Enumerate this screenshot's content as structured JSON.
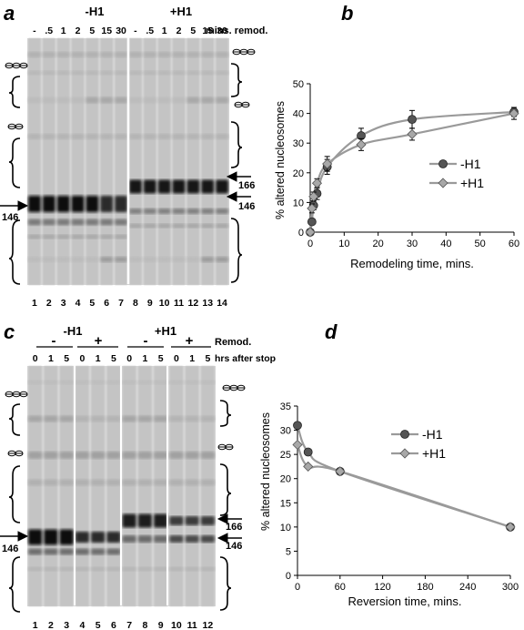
{
  "panels": {
    "a": {
      "letter": "a",
      "groups": [
        "-H1",
        "+H1"
      ],
      "time_header": "mins. remod.",
      "time_labels": [
        "-",
        ".5",
        "1",
        "2",
        "5",
        "15",
        "30",
        "-",
        ".5",
        "1",
        "2",
        "5",
        "15",
        "30"
      ],
      "lane_numbers": [
        "1",
        "2",
        "3",
        "4",
        "5",
        "6",
        "7",
        "8",
        "9",
        "10",
        "11",
        "12",
        "13",
        "14"
      ],
      "marker_left": "146",
      "marker_right_upper": "166",
      "marker_right_lower": "146"
    },
    "c": {
      "letter": "c",
      "groups": [
        "-H1",
        "+H1"
      ],
      "remod_signs": [
        "-",
        "+",
        "-",
        "+"
      ],
      "remod_header": "Remod.",
      "time_header": "hrs after stop",
      "time_labels": [
        "0",
        "1",
        "5",
        "0",
        "1",
        "5",
        "0",
        "1",
        "5",
        "0",
        "1",
        "5"
      ],
      "lane_numbers": [
        "1",
        "2",
        "3",
        "4",
        "5",
        "6",
        "7",
        "8",
        "9",
        "10",
        "11",
        "12"
      ],
      "marker_left": "146",
      "marker_right_upper": "166",
      "marker_right_lower": "146"
    },
    "b": {
      "letter": "b"
    },
    "d": {
      "letter": "d"
    }
  },
  "chart_data": [
    {
      "type": "line",
      "panel": "b",
      "xlabel": "Remodeling time, mins.",
      "ylabel": "% altered nucleosomes",
      "xlim": [
        0,
        60
      ],
      "ylim": [
        0,
        50
      ],
      "xticks": [
        0,
        10,
        20,
        30,
        40,
        50,
        60
      ],
      "yticks": [
        0,
        10,
        20,
        30,
        40,
        50
      ],
      "grid": false,
      "legend_position": "right",
      "series": [
        {
          "name": "-H1",
          "marker": "circle",
          "color": "#555555",
          "x": [
            0,
            0.5,
            1,
            2,
            5,
            15,
            30,
            60
          ],
          "y": [
            0,
            3.5,
            9,
            13,
            22,
            32.5,
            38,
            40.5
          ],
          "err": [
            0,
            1,
            1.5,
            2,
            2.5,
            2.5,
            3,
            1.5
          ]
        },
        {
          "name": "+H1",
          "marker": "diamond",
          "color": "#a8a8a8",
          "x": [
            0,
            0.5,
            1,
            2,
            5,
            15,
            30,
            60
          ],
          "y": [
            0,
            8,
            12,
            16.5,
            23,
            29.5,
            33,
            40
          ],
          "err": [
            0,
            1.5,
            1.5,
            1.5,
            2.5,
            2,
            2,
            2
          ]
        }
      ]
    },
    {
      "type": "line",
      "panel": "d",
      "xlabel": "Reversion time, mins.",
      "ylabel": "% altered nucleosomes",
      "xlim": [
        0,
        300
      ],
      "ylim": [
        0,
        35
      ],
      "xticks": [
        0,
        60,
        120,
        180,
        240,
        300
      ],
      "yticks": [
        0,
        5,
        10,
        15,
        20,
        25,
        30,
        35
      ],
      "grid": false,
      "legend_position": "top-center",
      "series": [
        {
          "name": "-H1",
          "marker": "circle",
          "color": "#555555",
          "x": [
            0,
            15,
            60,
            300
          ],
          "y": [
            31,
            25.5,
            21.5,
            10
          ]
        },
        {
          "name": "+H1",
          "marker": "diamond",
          "color": "#a8a8a8",
          "x": [
            0,
            15,
            60,
            300
          ],
          "y": [
            27,
            22.5,
            21.5,
            10
          ]
        }
      ]
    }
  ]
}
